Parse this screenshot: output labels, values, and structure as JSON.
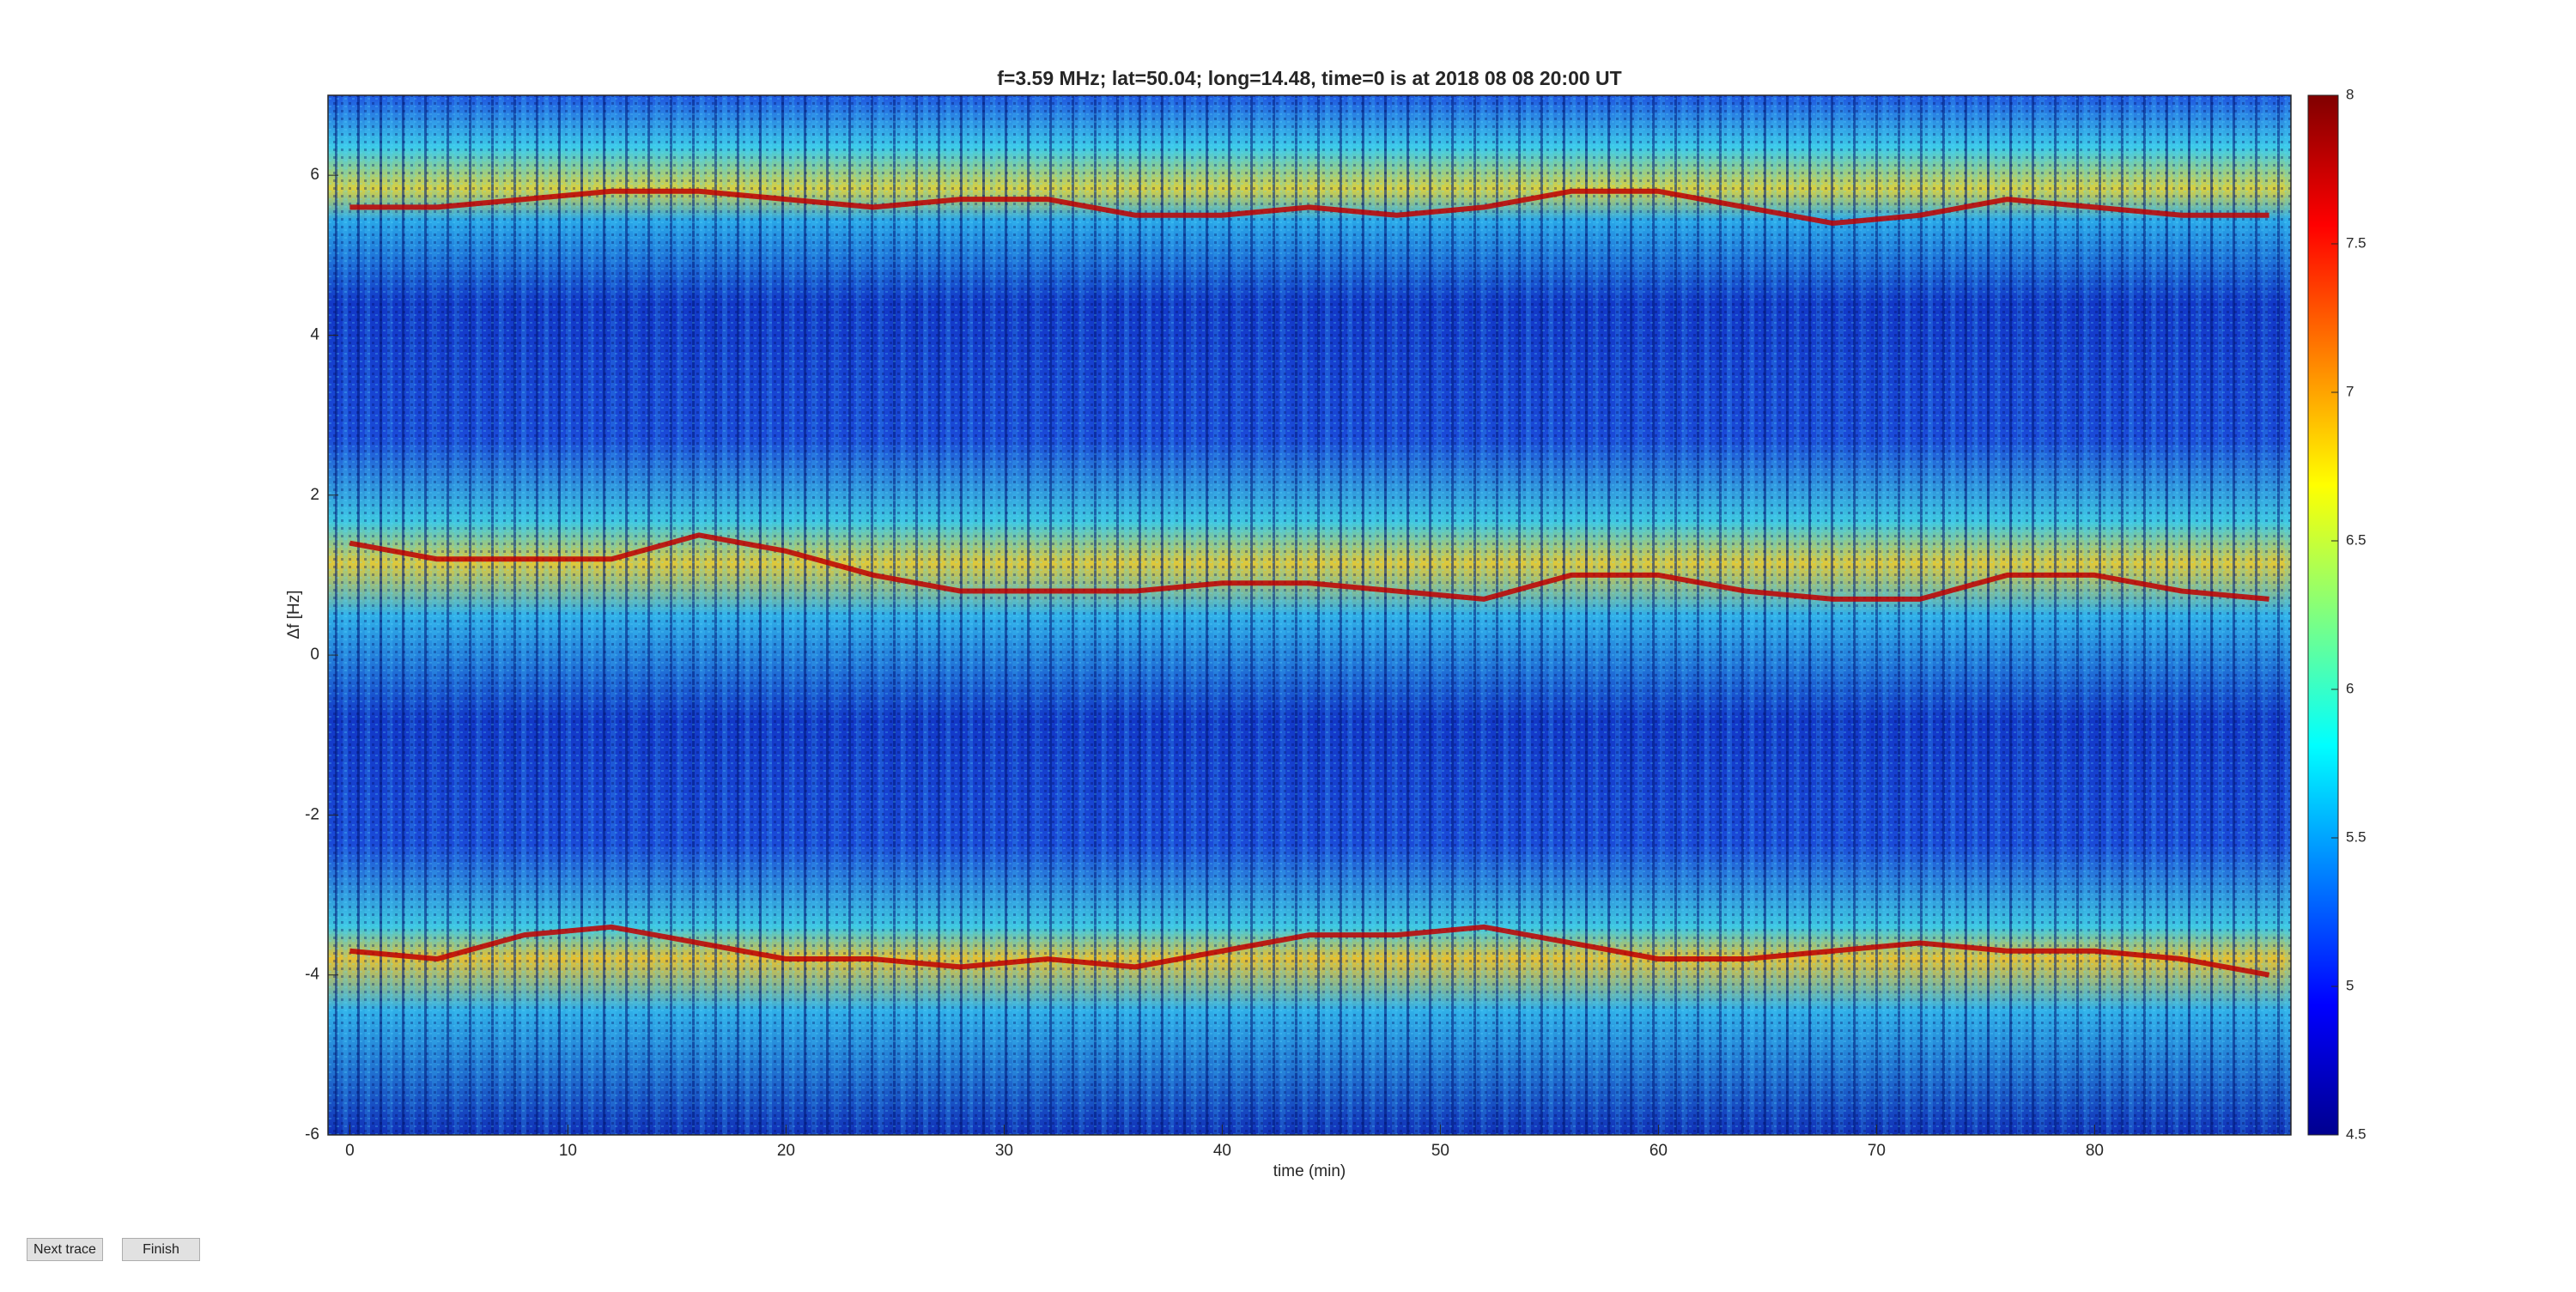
{
  "chart_data": {
    "type": "line",
    "title": "f=3.59 MHz;  lat=50.04; long=14.48, time=0 is at 2018 08 08 20:00 UT",
    "xlabel": "time (min)",
    "ylabel": "Δf [Hz]",
    "xlim": [
      -1,
      89
    ],
    "xticks": [
      0,
      10,
      20,
      30,
      40,
      50,
      60,
      70,
      80
    ],
    "ylim": [
      -6,
      7
    ],
    "yticks": [
      -6,
      -4,
      -2,
      0,
      2,
      4,
      6
    ],
    "x": [
      0,
      4,
      8,
      12,
      16,
      20,
      24,
      28,
      32,
      36,
      40,
      44,
      48,
      52,
      56,
      60,
      64,
      68,
      72,
      76,
      80,
      84,
      88
    ],
    "series": [
      {
        "color": "#c00000",
        "values": [
          5.6,
          5.6,
          5.7,
          5.8,
          5.8,
          5.7,
          5.6,
          5.7,
          5.7,
          5.5,
          5.5,
          5.6,
          5.5,
          5.6,
          5.8,
          5.8,
          5.6,
          5.4,
          5.5,
          5.7,
          5.6,
          5.5,
          5.5
        ]
      },
      {
        "color": "#c00000",
        "values": [
          1.4,
          1.2,
          1.2,
          1.2,
          1.5,
          1.3,
          1.0,
          0.8,
          0.8,
          0.8,
          0.9,
          0.9,
          0.8,
          0.7,
          1.0,
          1.0,
          0.8,
          0.7,
          0.7,
          1.0,
          1.0,
          0.8,
          0.7
        ]
      },
      {
        "color": "#c00000",
        "values": [
          -3.7,
          -3.8,
          -3.5,
          -3.4,
          -3.6,
          -3.8,
          -3.8,
          -3.9,
          -3.8,
          -3.9,
          -3.7,
          -3.5,
          -3.5,
          -3.4,
          -3.6,
          -3.8,
          -3.8,
          -3.7,
          -3.6,
          -3.7,
          -3.7,
          -3.8,
          -4.0
        ]
      }
    ],
    "colorbar": {
      "lim": [
        4.5,
        8
      ],
      "ticks": [
        4.5,
        5,
        5.5,
        6,
        6.5,
        7,
        7.5,
        8
      ]
    }
  },
  "buttons": [
    "Next trace",
    "Finish"
  ]
}
